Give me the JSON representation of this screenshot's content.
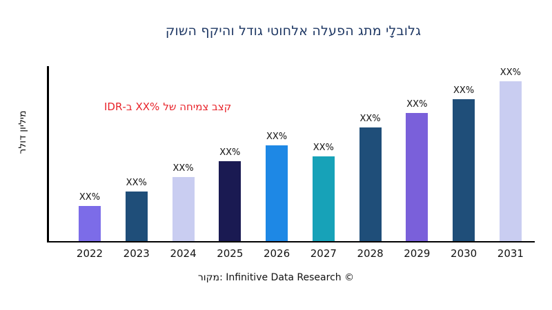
{
  "chart_data": {
    "type": "bar",
    "title": "גלובלָי מתג הפעלה אלחוטי גודל והיקף השוק",
    "ylabel": "מיליון דולר",
    "xlabel": "",
    "categories": [
      "2022",
      "2023",
      "2024",
      "2025",
      "2026",
      "2027",
      "2028",
      "2029",
      "2030",
      "2031"
    ],
    "values": [
      22,
      31,
      40,
      50,
      60,
      53,
      71,
      80,
      89,
      100
    ],
    "values_note": "relative bar heights, max = 100; y-axis shows no numeric ticks",
    "ylim": [
      0,
      100
    ],
    "bar_labels": [
      "XX%",
      "XX%",
      "XX%",
      "XX%",
      "XX%",
      "XX%",
      "XX%",
      "XX%",
      "XX%",
      "XX%"
    ],
    "bar_colors": [
      "#7c6ce8",
      "#1f4e79",
      "#c9cdf1",
      "#1a1a52",
      "#1e88e5",
      "#17a2b8",
      "#1f4e79",
      "#7a60da",
      "#1f4e79",
      "#c9cdf1"
    ],
    "annotation": {
      "prefix": "קצב צמיחה של",
      "percent": "XX%",
      "suffix": "ב-IDR",
      "color": "#e8232a"
    },
    "legend": "none",
    "grid": false
  },
  "footer": {
    "source_text": "מקור: Infinitive Data Research ©"
  },
  "colors": {
    "background": "#ffffff",
    "title": "#1f3864",
    "axis": "#000000",
    "annotation_red": "#e8232a",
    "text": "#111111"
  }
}
